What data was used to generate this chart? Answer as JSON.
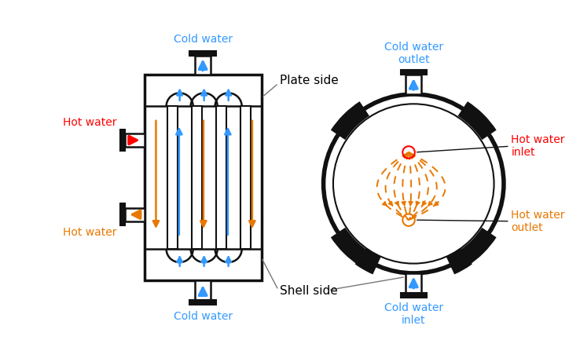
{
  "blue": "#3399FF",
  "orange": "#E87800",
  "red": "#FF0000",
  "dark": "#111111",
  "gray": "#777777",
  "plate_label": "Plate side",
  "shell_label": "Shell side",
  "cold_water_top": "Cold water",
  "cold_water_bottom": "Cold water",
  "hot_water_left_top": "Hot water",
  "hot_water_left_bottom": "Hot water",
  "cold_water_outlet": "Cold water\noutlet",
  "cold_water_inlet": "Cold water\ninlet",
  "hot_water_inlet": "Hot water\ninlet",
  "hot_water_outlet": "Hot water\noutlet"
}
